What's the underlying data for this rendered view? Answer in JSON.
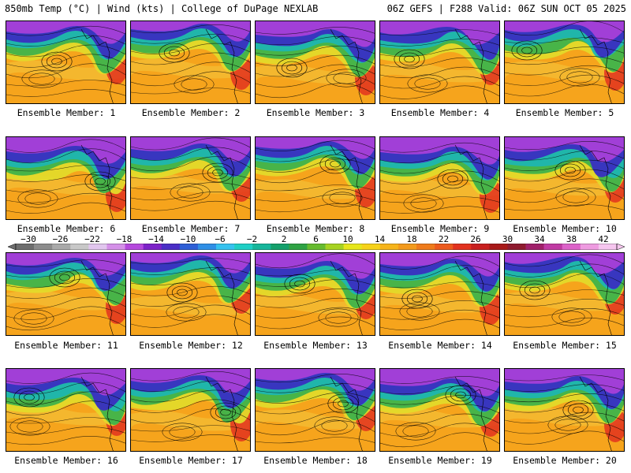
{
  "header": {
    "left": "850mb Temp (°C) | Wind (kts) | College of DuPage NEXLAB",
    "right": "06Z GEFS | F288 Valid: 06Z SUN OCT 05 2025"
  },
  "members": [
    "Ensemble Member: 1",
    "Ensemble Member: 2",
    "Ensemble Member: 3",
    "Ensemble Member: 4",
    "Ensemble Member: 5",
    "Ensemble Member: 6",
    "Ensemble Member: 7",
    "Ensemble Member: 8",
    "Ensemble Member: 9",
    "Ensemble Member: 10",
    "Ensemble Member: 11",
    "Ensemble Member: 12",
    "Ensemble Member: 13",
    "Ensemble Member: 14",
    "Ensemble Member: 15",
    "Ensemble Member: 16",
    "Ensemble Member: 17",
    "Ensemble Member: 18",
    "Ensemble Member: 19",
    "Ensemble Member: 20"
  ],
  "colorbar": {
    "labels": [
      "−30",
      "−26",
      "−22",
      "−18",
      "−14",
      "−10",
      "−6",
      "−2",
      "2",
      "6",
      "10",
      "14",
      "18",
      "22",
      "26",
      "30",
      "34",
      "38",
      "42"
    ],
    "colors": [
      "#6e6e6e",
      "#8c8c8c",
      "#a9a9a9",
      "#c8c8c8",
      "#e1c6ee",
      "#d490e8",
      "#b548dd",
      "#7d22c8",
      "#4a2ec6",
      "#2e5fd6",
      "#2f8fe6",
      "#36c2ef",
      "#1fcfc5",
      "#17b69b",
      "#14a06b",
      "#2fa344",
      "#66bb2f",
      "#a6d222",
      "#e6e61c",
      "#f6d21a",
      "#f6b41b",
      "#f39a1c",
      "#ef7b1c",
      "#ec5a1d",
      "#e2321f",
      "#c8201f",
      "#a81a1a",
      "#8e1b2f",
      "#a0206a",
      "#c03aa3",
      "#dc62c9",
      "#ee9be0",
      "#f6c6ef"
    ]
  },
  "map_colors": {
    "warm": "#f6a41c",
    "warm_light": "#f3c43a",
    "hot": "#e2321f",
    "cold": "#3a2fc0",
    "purple": "#a640d8",
    "teal": "#1fb6b0",
    "green": "#3fb24a",
    "yellow": "#e3da2a"
  }
}
